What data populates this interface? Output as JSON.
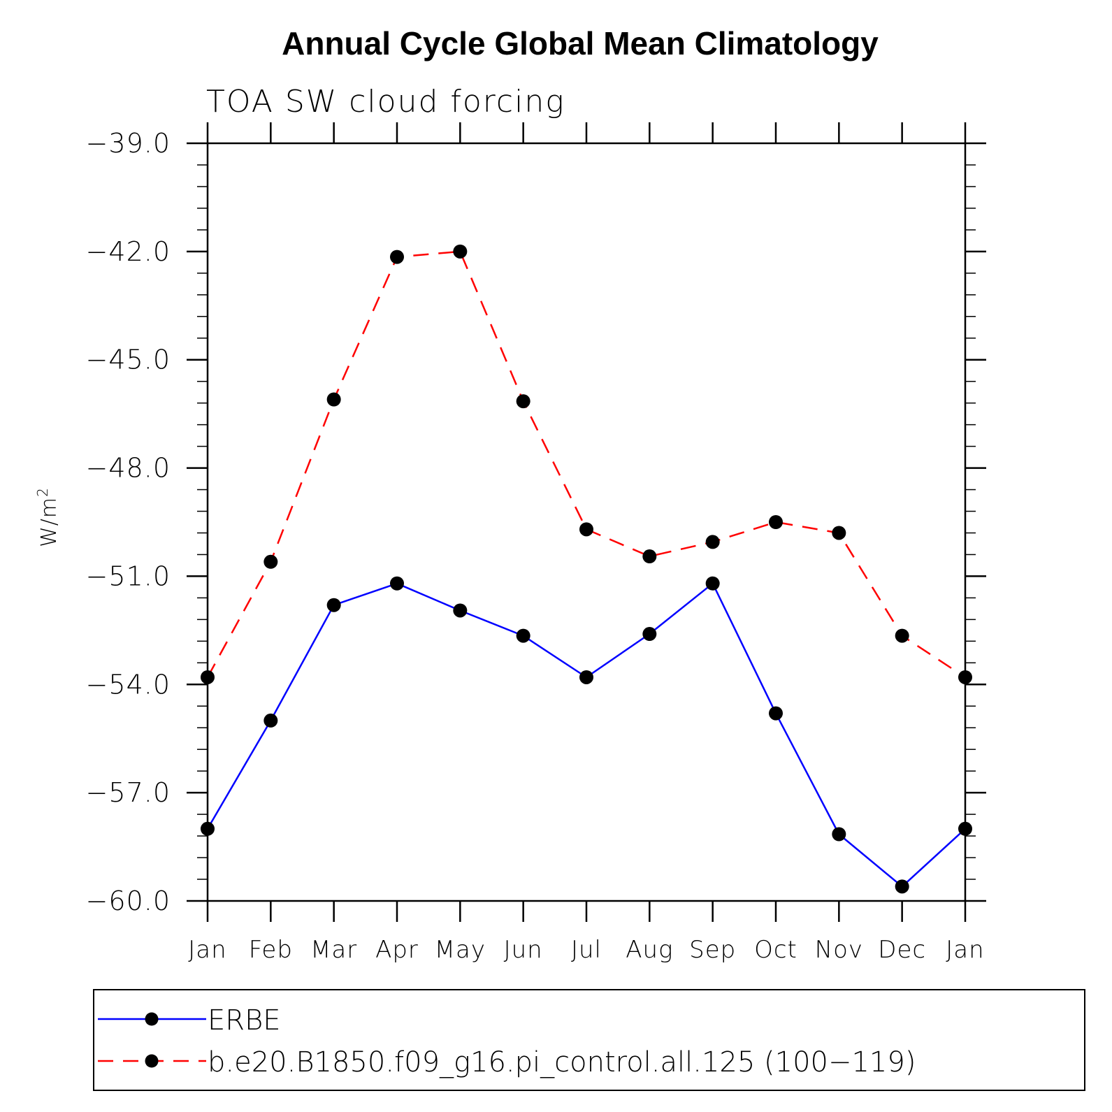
{
  "chart_data": {
    "type": "line",
    "title": "Annual Cycle Global Mean Climatology",
    "subtitle": "TOA SW cloud forcing",
    "ylabel_base": "W/m",
    "ylabel_sup": "2",
    "ylim": [
      -60.0,
      -39.0
    ],
    "yticks": [
      -60.0,
      -57.0,
      -54.0,
      -51.0,
      -48.0,
      -45.0,
      -42.0,
      -39.0
    ],
    "ytick_labels": [
      "−60.0",
      "−57.0",
      "−54.0",
      "−51.0",
      "−48.0",
      "−45.0",
      "−42.0",
      "−39.0"
    ],
    "categories": [
      "Jan",
      "Feb",
      "Mar",
      "Apr",
      "May",
      "Jun",
      "Jul",
      "Aug",
      "Sep",
      "Oct",
      "Nov",
      "Dec",
      "Jan"
    ],
    "grid": false,
    "legend_position": "bottom",
    "series": [
      {
        "name": "ERBE",
        "color": "#0000ff",
        "dash": "solid",
        "values": [
          -58.0,
          -55.0,
          -51.8,
          -51.2,
          -51.95,
          -52.65,
          -53.8,
          -52.6,
          -51.2,
          -54.8,
          -58.15,
          -59.6,
          -58.0
        ]
      },
      {
        "name": "b.e20.B1850.f09_g16.pi_control.all.125 (100−119)",
        "color": "#ff0000",
        "dash": "dashed",
        "values": [
          -53.8,
          -50.6,
          -46.1,
          -42.15,
          -42.0,
          -46.15,
          -49.7,
          -50.45,
          -50.05,
          -49.5,
          -49.8,
          -52.65,
          -53.8
        ]
      }
    ]
  }
}
